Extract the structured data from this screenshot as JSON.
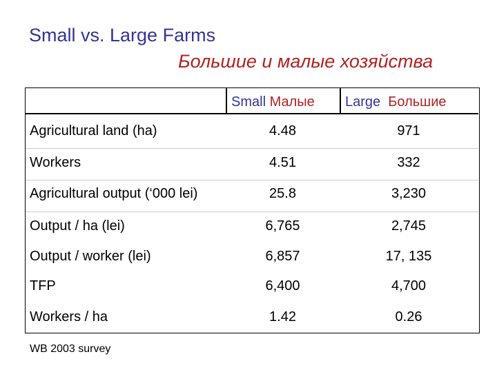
{
  "title": {
    "en": "Small vs. Large Farms",
    "ru": "Большие и малые хозяйства"
  },
  "table": {
    "header": {
      "small_en": "Small",
      "small_ru": "Малые",
      "large_en": "Large",
      "large_ru": "Большие"
    },
    "rows": [
      {
        "label": "Agricultural land (ha)",
        "small": "4.48",
        "large": "971"
      },
      {
        "label": "Workers",
        "small": "4.51",
        "large": "332"
      },
      {
        "label": "Agricultural output (‘000 lei)",
        "small": "25.8",
        "large": "3,230"
      },
      {
        "label": "Output / ha (lei)",
        "small": "6,765",
        "large": "2,745"
      },
      {
        "label": "Output / worker (lei)",
        "small": "6,857",
        "large": "17, 135"
      },
      {
        "label": "TFP",
        "small": "6,400",
        "large": "4,700"
      },
      {
        "label": "Workers / ha",
        "small": "1.42",
        "large": "0.26"
      }
    ]
  },
  "footnote": "WB 2003 survey",
  "colors": {
    "title_en": "#333399",
    "title_ru": "#b22222"
  }
}
